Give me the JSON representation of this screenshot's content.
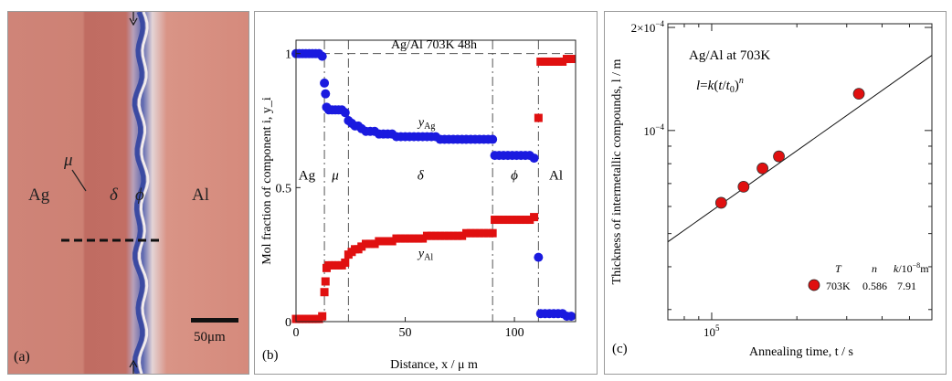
{
  "panel_a": {
    "label": "(a)",
    "scale_bar": "50μm",
    "phases": {
      "ag": "Ag",
      "mu": "μ",
      "delta": "δ",
      "phi": "ϕ",
      "al": "Al"
    },
    "colors": {
      "ag": "#cd7f72",
      "delta": "#c26f64",
      "interface": "#4a5aa8",
      "al": "#d88a7e"
    }
  },
  "panel_b": {
    "label": "(b)",
    "chart_data": {
      "type": "scatter",
      "title": "Ag/Al   703K   48h",
      "xlabel": "Distance, x / μ m",
      "ylabel": "Mol fraction of component i, y_i",
      "xlim": [
        0,
        128
      ],
      "ylim": [
        0,
        1.05
      ],
      "xticks": [
        "0",
        "50",
        "100"
      ],
      "yticks": [
        "0",
        "0.5",
        "1"
      ],
      "phase_labels": [
        "Ag",
        "μ",
        "δ",
        "ϕ",
        "Al"
      ],
      "phase_boundaries": [
        13,
        24,
        90,
        111
      ],
      "series": [
        {
          "name": "y_Ag",
          "label_main": "y",
          "label_sub": "Ag",
          "color": "#1a1adf",
          "marker": "circle",
          "x": [
            0,
            1.5,
            3,
            4.5,
            6,
            7.5,
            9,
            10.5,
            12,
            13,
            13.5,
            14,
            15,
            16.5,
            18,
            19.5,
            21,
            22.5,
            24,
            25.5,
            27,
            28.5,
            30,
            32,
            34,
            36,
            38,
            40,
            42,
            44,
            46,
            48,
            50,
            52,
            54,
            56,
            58,
            60,
            62,
            64,
            66,
            68,
            70,
            72,
            74,
            76,
            78,
            80,
            82,
            84,
            86,
            88,
            90,
            91,
            93,
            95,
            97,
            99,
            101,
            103,
            105,
            107,
            109,
            111,
            112,
            114,
            116,
            118,
            120,
            122,
            124,
            126
          ],
          "values": [
            1.0,
            1.0,
            1.0,
            1.0,
            1.0,
            1.0,
            1.0,
            1.0,
            0.99,
            0.89,
            0.85,
            0.8,
            0.79,
            0.79,
            0.79,
            0.79,
            0.79,
            0.78,
            0.75,
            0.74,
            0.73,
            0.73,
            0.72,
            0.71,
            0.71,
            0.71,
            0.7,
            0.7,
            0.7,
            0.7,
            0.69,
            0.69,
            0.69,
            0.69,
            0.69,
            0.69,
            0.69,
            0.69,
            0.69,
            0.69,
            0.68,
            0.68,
            0.68,
            0.68,
            0.68,
            0.68,
            0.68,
            0.68,
            0.68,
            0.68,
            0.68,
            0.68,
            0.68,
            0.62,
            0.62,
            0.62,
            0.62,
            0.62,
            0.62,
            0.62,
            0.62,
            0.62,
            0.61,
            0.24,
            0.03,
            0.03,
            0.03,
            0.03,
            0.03,
            0.03,
            0.02,
            0.02
          ]
        },
        {
          "name": "y_Al",
          "label_main": "y",
          "label_sub": "Al",
          "color": "#e01010",
          "marker": "square",
          "x": [
            0,
            1.5,
            3,
            4.5,
            6,
            7.5,
            9,
            10.5,
            12,
            13,
            13.5,
            14,
            15,
            16.5,
            18,
            19.5,
            21,
            22.5,
            24,
            25.5,
            27,
            28.5,
            30,
            32,
            34,
            36,
            38,
            40,
            42,
            44,
            46,
            48,
            50,
            52,
            54,
            56,
            58,
            60,
            62,
            64,
            66,
            68,
            70,
            72,
            74,
            76,
            78,
            80,
            82,
            84,
            86,
            88,
            90,
            91,
            93,
            95,
            97,
            99,
            101,
            103,
            105,
            107,
            109,
            111,
            112,
            114,
            116,
            118,
            120,
            122,
            124,
            126
          ],
          "values": [
            0.01,
            0.01,
            0.01,
            0.01,
            0.01,
            0.01,
            0.01,
            0.01,
            0.02,
            0.11,
            0.15,
            0.2,
            0.21,
            0.21,
            0.21,
            0.21,
            0.21,
            0.22,
            0.25,
            0.26,
            0.27,
            0.27,
            0.28,
            0.29,
            0.29,
            0.29,
            0.3,
            0.3,
            0.3,
            0.3,
            0.31,
            0.31,
            0.31,
            0.31,
            0.31,
            0.31,
            0.31,
            0.32,
            0.32,
            0.32,
            0.32,
            0.32,
            0.32,
            0.32,
            0.32,
            0.32,
            0.33,
            0.33,
            0.33,
            0.33,
            0.33,
            0.33,
            0.33,
            0.38,
            0.38,
            0.38,
            0.38,
            0.38,
            0.38,
            0.38,
            0.38,
            0.38,
            0.39,
            0.76,
            0.97,
            0.97,
            0.97,
            0.97,
            0.97,
            0.97,
            0.98,
            0.98
          ]
        }
      ]
    }
  },
  "panel_c": {
    "label": "(c)",
    "chart_data": {
      "type": "scatter",
      "title": "Ag/Al  at 703K",
      "equation": {
        "l": "l",
        "eq": "=",
        "k": "k",
        "open": "(",
        "t": "t",
        "slash": "/",
        "t0": "t",
        "t0_sub": "0",
        "close": ")",
        "n": "n"
      },
      "xlabel": "Annealing time, t / s",
      "ylabel": "Thickness of intermetallic compounds, l / m",
      "xscale": "log",
      "yscale": "log",
      "xlim": [
        70000,
        600000
      ],
      "ylim": [
        2.8e-05,
        0.000205
      ],
      "xtick_label": {
        "base": "10",
        "exp": "5"
      },
      "ytick_labels": [
        {
          "base": "10",
          "exp": "−4",
          "value": 0.0001
        },
        {
          "base": "2×10",
          "exp": "−4",
          "value": 0.0002
        }
      ],
      "points": {
        "x": [
          108000,
          129600,
          151200,
          172800,
          331200
        ],
        "y": [
          6.15e-05,
          6.85e-05,
          7.75e-05,
          8.4e-05,
          0.000128
        ]
      },
      "fit_line": {
        "x": [
          70000,
          600000
        ],
        "y": [
          4.73e-05,
          0.0001658
        ]
      },
      "point_color": "#e01010",
      "legend": {
        "head_T": "T",
        "head_n": "n",
        "head_k": "k",
        "head_k_unit": "/10",
        "head_k_exp": "−8",
        "head_k_m": "m",
        "T": "703K",
        "n": "0.586",
        "k": "7.91"
      }
    }
  }
}
